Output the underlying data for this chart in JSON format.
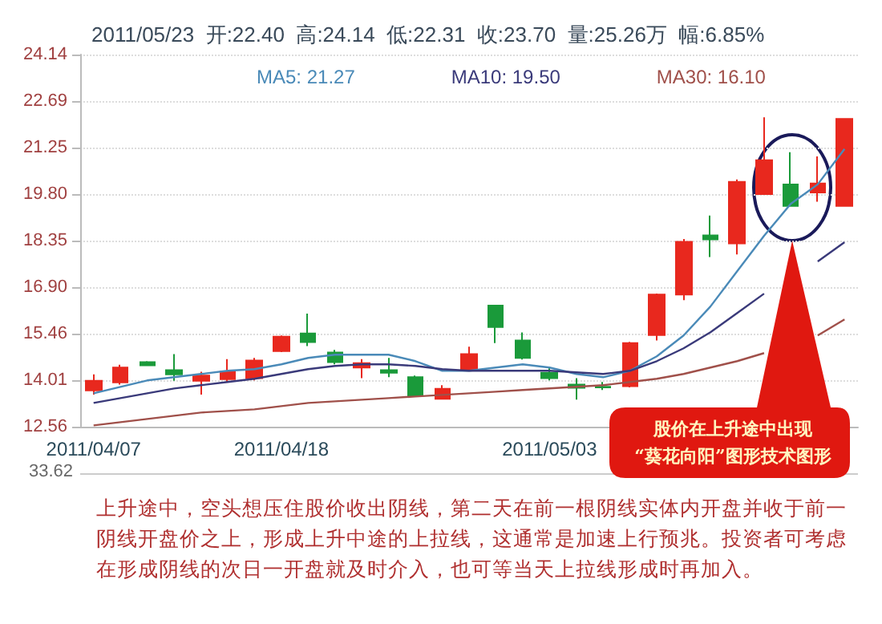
{
  "chart_data": {
    "type": "candlestick",
    "title": "2011/05/23  开:22.40  高:24.14  低:22.31  收:23.70  量:25.26万  幅:6.85%",
    "categories": [
      "2011/04/07",
      null,
      null,
      null,
      null,
      null,
      null,
      "2011/04/18",
      null,
      null,
      null,
      null,
      null,
      null,
      null,
      null,
      null,
      "2011/05/03",
      null,
      null,
      null,
      null,
      null,
      null,
      null,
      null,
      null,
      null,
      null
    ],
    "ohlc": [
      [
        13.69,
        14.19,
        13.56,
        13.99
      ],
      [
        13.94,
        14.49,
        13.87,
        14.4
      ],
      [
        14.57,
        14.6,
        14.45,
        14.47
      ],
      [
        14.32,
        14.82,
        13.99,
        14.19
      ],
      [
        13.99,
        14.27,
        13.56,
        14.15
      ],
      [
        14.04,
        14.66,
        13.94,
        14.27
      ],
      [
        14.07,
        14.7,
        14.0,
        14.62
      ],
      [
        14.91,
        15.4,
        14.88,
        15.36
      ],
      [
        15.46,
        16.08,
        15.07,
        15.19
      ],
      [
        14.87,
        14.95,
        14.5,
        14.57
      ],
      [
        14.4,
        14.66,
        14.07,
        14.54
      ],
      [
        14.32,
        14.7,
        14.1,
        14.24
      ],
      [
        14.1,
        14.15,
        13.5,
        13.53
      ],
      [
        13.43,
        13.85,
        13.4,
        13.74
      ],
      [
        14.32,
        15.05,
        14.32,
        14.82
      ],
      [
        16.33,
        16.33,
        15.16,
        15.66
      ],
      [
        15.24,
        15.49,
        14.65,
        14.7
      ],
      [
        14.24,
        14.4,
        14.0,
        14.07
      ],
      [
        13.87,
        14.07,
        13.4,
        13.77
      ],
      [
        13.8,
        13.95,
        13.7,
        13.78
      ],
      [
        13.82,
        15.2,
        13.78,
        15.16
      ],
      [
        15.41,
        16.7,
        15.24,
        16.67
      ],
      [
        16.67,
        18.4,
        16.5,
        18.31
      ],
      [
        18.51,
        19.13,
        17.84,
        18.39
      ],
      [
        18.26,
        20.25,
        17.92,
        20.18
      ],
      [
        19.8,
        22.19,
        19.8,
        20.85
      ],
      [
        20.1,
        21.1,
        19.43,
        19.43
      ],
      [
        19.85,
        20.97,
        19.56,
        20.13
      ],
      [
        19.43,
        22.14,
        19.43,
        22.14
      ]
    ],
    "colors": [
      "#e8281e",
      "#e8281e",
      "#1a9a3a",
      "#1a9a3a",
      "#e8281e",
      "#e8281e",
      "#e8281e",
      "#e8281e",
      "#1a9a3a",
      "#1a9a3a",
      "#e8281e",
      "#1a9a3a",
      "#1a9a3a",
      "#e8281e",
      "#e8281e",
      "#1a9a3a",
      "#1a9a3a",
      "#1a9a3a",
      "#1a9a3a",
      "#1a9a3a",
      "#e8281e",
      "#e8281e",
      "#e8281e",
      "#1a9a3a",
      "#e8281e",
      "#e8281e",
      "#1a9a3a",
      "#e8281e",
      "#e8281e"
    ],
    "series": [
      {
        "name": "MA5: 21.27",
        "type": "line",
        "color": "#4a8ab8",
        "values": [
          13.6,
          13.8,
          14.0,
          14.1,
          14.2,
          14.3,
          14.35,
          14.5,
          14.7,
          14.8,
          14.8,
          14.8,
          14.6,
          14.3,
          14.3,
          14.4,
          14.5,
          14.4,
          14.2,
          14.1,
          14.3,
          14.75,
          15.4,
          16.3,
          17.4,
          18.5,
          19.5,
          20.1,
          21.2
        ]
      },
      {
        "name": "MA10: 19.50",
        "type": "line",
        "color": "#3a3a7a",
        "values": [
          13.3,
          13.45,
          13.6,
          13.75,
          13.85,
          13.95,
          14.05,
          14.2,
          14.35,
          14.45,
          14.5,
          14.5,
          14.45,
          14.35,
          14.3,
          14.3,
          14.3,
          14.3,
          14.25,
          14.2,
          14.3,
          14.6,
          15.0,
          15.5,
          16.1,
          16.7,
          null,
          17.7,
          18.3
        ]
      },
      {
        "name": "MA30: 16.10",
        "type": "line",
        "color": "#a0504a",
        "values": [
          12.6,
          12.7,
          12.8,
          12.9,
          13.0,
          13.05,
          13.1,
          13.2,
          13.3,
          13.35,
          13.4,
          13.45,
          13.5,
          13.55,
          13.6,
          13.65,
          13.7,
          13.75,
          13.8,
          13.85,
          13.95,
          14.05,
          14.2,
          14.4,
          14.6,
          14.85,
          null,
          15.4,
          15.9
        ]
      }
    ],
    "ylim": [
      12.56,
      24.14
    ],
    "yticks": [
      12.56,
      14.01,
      15.46,
      {
        "value": 16.9,
        "label": "16.90"
      },
      18.35,
      {
        "value": 19.8,
        "label": "19.80"
      },
      21.25,
      22.69,
      24.14
    ],
    "grid": "y",
    "legend": "top",
    "marker": "none",
    "annotations": [
      "股价在上升途中出现\n“葵花向阳”图形技术图形",
      "33.62",
      "上升途中，空头想压住股价收出阴线，第二天在前一根阴线实体内开盘并收于前一阴线开盘价之上，形成上升中途的上拉线，这通常是加速上行预兆。投资者可考虑在形成阴线的次日一开盘就及时介入，也可等当天上拉线形成时再加入。"
    ]
  }
}
